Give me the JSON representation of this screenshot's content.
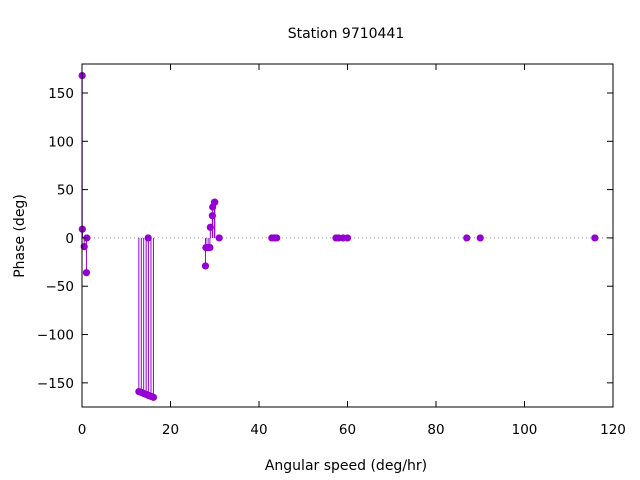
{
  "chart_data": {
    "type": "scatter",
    "title": "Station 9710441",
    "xlabel": "Angular speed (deg/hr)",
    "ylabel": "Phase (deg)",
    "xlim": [
      0,
      120
    ],
    "ylim": [
      -175,
      180
    ],
    "xticks": [
      0,
      20,
      40,
      60,
      80,
      100,
      120
    ],
    "yticks": [
      -150,
      -100,
      -50,
      0,
      50,
      100,
      150
    ],
    "grid": false,
    "zero_line": true,
    "style": "impulses-with-points",
    "point_color": "#9400d3",
    "points": [
      {
        "x": 0.04,
        "y": 168
      },
      {
        "x": 0.08,
        "y": 9
      },
      {
        "x": 0.5,
        "y": -9
      },
      {
        "x": 1.0,
        "y": -36
      },
      {
        "x": 1.1,
        "y": 0
      },
      {
        "x": 12.85,
        "y": -159
      },
      {
        "x": 13.4,
        "y": -160
      },
      {
        "x": 13.94,
        "y": -161
      },
      {
        "x": 14.5,
        "y": -162
      },
      {
        "x": 14.96,
        "y": 0
      },
      {
        "x": 15.0,
        "y": -163
      },
      {
        "x": 15.59,
        "y": -164
      },
      {
        "x": 16.14,
        "y": -165
      },
      {
        "x": 27.9,
        "y": -29
      },
      {
        "x": 28.0,
        "y": -10
      },
      {
        "x": 28.5,
        "y": -10
      },
      {
        "x": 28.9,
        "y": -10
      },
      {
        "x": 29.0,
        "y": 11
      },
      {
        "x": 29.46,
        "y": 23
      },
      {
        "x": 29.53,
        "y": 32
      },
      {
        "x": 29.96,
        "y": 37
      },
      {
        "x": 30.0,
        "y": 37
      },
      {
        "x": 31.0,
        "y": 0
      },
      {
        "x": 42.9,
        "y": 0
      },
      {
        "x": 43.5,
        "y": 0
      },
      {
        "x": 44.0,
        "y": 0
      },
      {
        "x": 57.4,
        "y": 0
      },
      {
        "x": 58.0,
        "y": 0
      },
      {
        "x": 59.0,
        "y": 0
      },
      {
        "x": 60.0,
        "y": 0
      },
      {
        "x": 86.95,
        "y": 0
      },
      {
        "x": 90.0,
        "y": 0
      },
      {
        "x": 115.9,
        "y": 0
      }
    ]
  }
}
